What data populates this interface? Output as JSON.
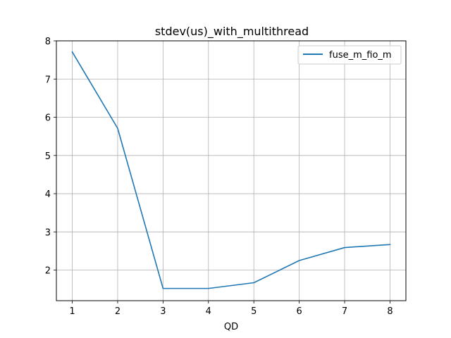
{
  "chart_data": {
    "type": "line",
    "title": "stdev(us)_with_multithread",
    "xlabel": "QD",
    "ylabel": "",
    "x": [
      1,
      2,
      3,
      4,
      5,
      6,
      7,
      8
    ],
    "xlim": [
      0.65,
      8.35
    ],
    "ylim": [
      1.2,
      8.0
    ],
    "xticks": [
      1,
      2,
      3,
      4,
      5,
      6,
      7,
      8
    ],
    "yticks": [
      2,
      3,
      4,
      5,
      6,
      7,
      8
    ],
    "grid": true,
    "legend_position": "top-right",
    "series": [
      {
        "name": "fuse_m_fio_m",
        "color": "#1f77b4",
        "values": [
          7.71,
          5.71,
          1.52,
          1.52,
          1.67,
          2.25,
          2.59,
          2.67
        ]
      }
    ]
  }
}
